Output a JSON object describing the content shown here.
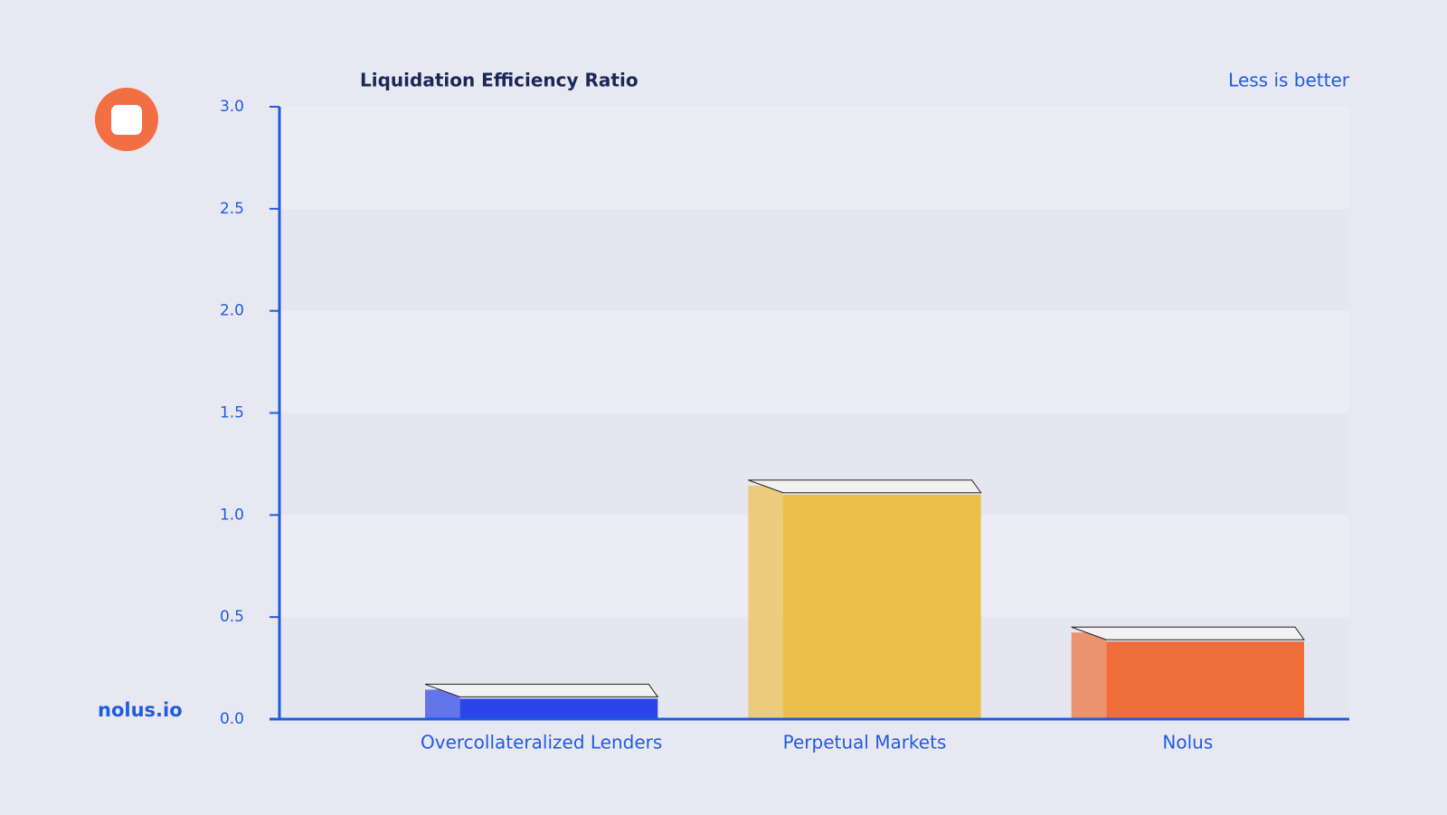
{
  "chart_data": {
    "type": "bar",
    "title": "Liquidation Efficiency Ratio",
    "annotation": "Less is better",
    "brand": "nolus.io",
    "categories": [
      "Overcollateralized Lenders",
      "Perpetual Markets",
      "Nolus"
    ],
    "values": [
      0.1,
      1.1,
      0.38
    ],
    "colors": [
      "#2a45e8",
      "#ecbf4a",
      "#ee6d38"
    ],
    "ylim": [
      0,
      3
    ],
    "yticks": [
      {
        "value": 0,
        "label": "0.0"
      },
      0.5,
      {
        "value": 1,
        "label": "1.0"
      },
      1.5,
      {
        "value": 2,
        "label": "2.0"
      },
      2.5,
      {
        "value": 3,
        "label": "3.0"
      }
    ],
    "grid": true
  }
}
